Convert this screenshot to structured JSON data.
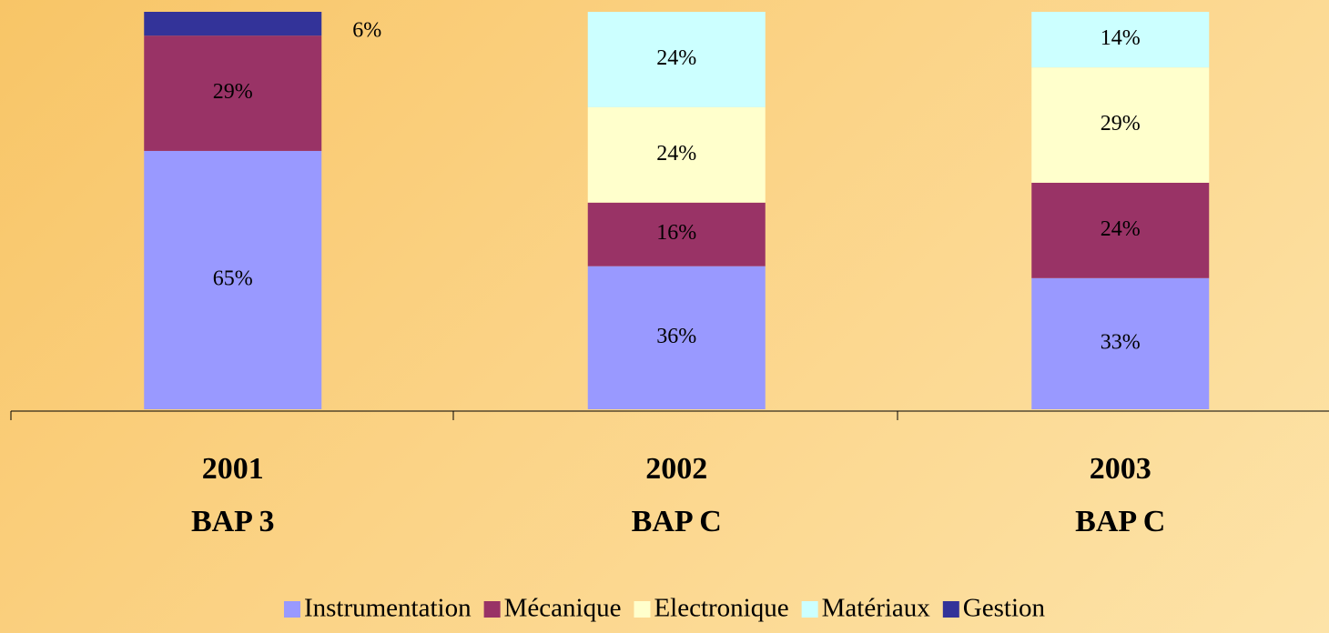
{
  "chart_data": {
    "type": "stacked_bar",
    "categories": [
      [
        "2001",
        "BAP 3"
      ],
      [
        "2002",
        "BAP C"
      ],
      [
        "2003",
        "BAP C"
      ]
    ],
    "ylim": [
      0,
      100
    ],
    "legend": "bottom",
    "series": [
      {
        "name": "Instrumentation",
        "color": "#9999ff",
        "values": [
          65,
          36,
          33
        ],
        "value_labels": [
          "65%",
          "36%",
          "33%"
        ]
      },
      {
        "name": "Mécanique",
        "color": "#993366",
        "values": [
          29,
          16,
          24
        ],
        "value_labels": [
          "29%",
          "16%",
          "24%"
        ]
      },
      {
        "name": "Electronique",
        "color": "#ffffcc",
        "values": [
          null,
          24,
          29
        ],
        "value_labels": [
          null,
          "24%",
          "29%"
        ]
      },
      {
        "name": "Matériaux",
        "color": "#ccffff",
        "values": [
          null,
          24,
          14
        ],
        "value_labels": [
          null,
          "24%",
          "14%"
        ]
      },
      {
        "name": "Gestion",
        "color": "#333399",
        "values": [
          6,
          null,
          null
        ],
        "value_labels": [
          "6%",
          null,
          null
        ]
      }
    ]
  }
}
